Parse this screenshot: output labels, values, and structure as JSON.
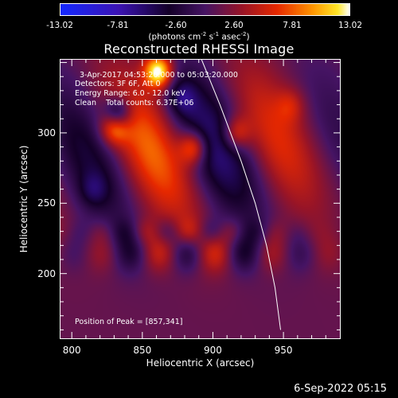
{
  "colorbar": {
    "ticks": [
      "-13.02",
      "-7.81",
      "-2.60",
      "2.60",
      "7.81",
      "13.02"
    ],
    "unit_prefix": "(photons cm",
    "unit_exp1": "-2",
    "unit_mid": " s",
    "unit_exp2": "-1",
    "unit_mid2": " asec",
    "unit_exp3": "-2",
    "unit_suffix": ")"
  },
  "chart_data": {
    "type": "heatmap",
    "title": "Reconstructed RHESSI Image",
    "xlabel": "Heliocentric X (arcsec)",
    "ylabel": "Heliocentric Y (arcsec)",
    "xlim": [
      792,
      990
    ],
    "ylim": [
      154,
      352
    ],
    "xticks": [
      800,
      850,
      900,
      950
    ],
    "yticks": [
      200,
      250,
      300
    ],
    "clim": [
      -13.02,
      13.02
    ],
    "colormap": "blue-black-purple-red-yellow-white",
    "peak": [
      857,
      341
    ],
    "limb_curve": [
      [
        892,
        352
      ],
      [
        905,
        320
      ],
      [
        920,
        280
      ],
      [
        930,
        250
      ],
      [
        938,
        220
      ],
      [
        944,
        190
      ],
      [
        948,
        160
      ]
    ],
    "blobs": [
      {
        "x": 861,
        "y": 344,
        "value": 13.0
      },
      {
        "x": 830,
        "y": 305,
        "value": 9.0
      },
      {
        "x": 832,
        "y": 313,
        "value": -10.0
      },
      {
        "x": 886,
        "y": 290,
        "value": 8.0
      },
      {
        "x": 916,
        "y": 300,
        "value": 6.0
      },
      {
        "x": 878,
        "y": 325,
        "value": -4.0
      },
      {
        "x": 955,
        "y": 320,
        "value": 3.0
      },
      {
        "x": 815,
        "y": 260,
        "value": -3.0
      }
    ]
  },
  "info": {
    "line1": "3-Apr-2017 04:53:20.000 to 05:03:20.000",
    "line2": "Detectors: 3F 6F, Att 0",
    "line3": "Energy Range: 6.0 - 12.0 keV",
    "line4": "Clean    Total counts: 6.37E+06",
    "peak_label": "Position of Peak = [857,341]"
  },
  "timestamp": "6-Sep-2022 05:15"
}
